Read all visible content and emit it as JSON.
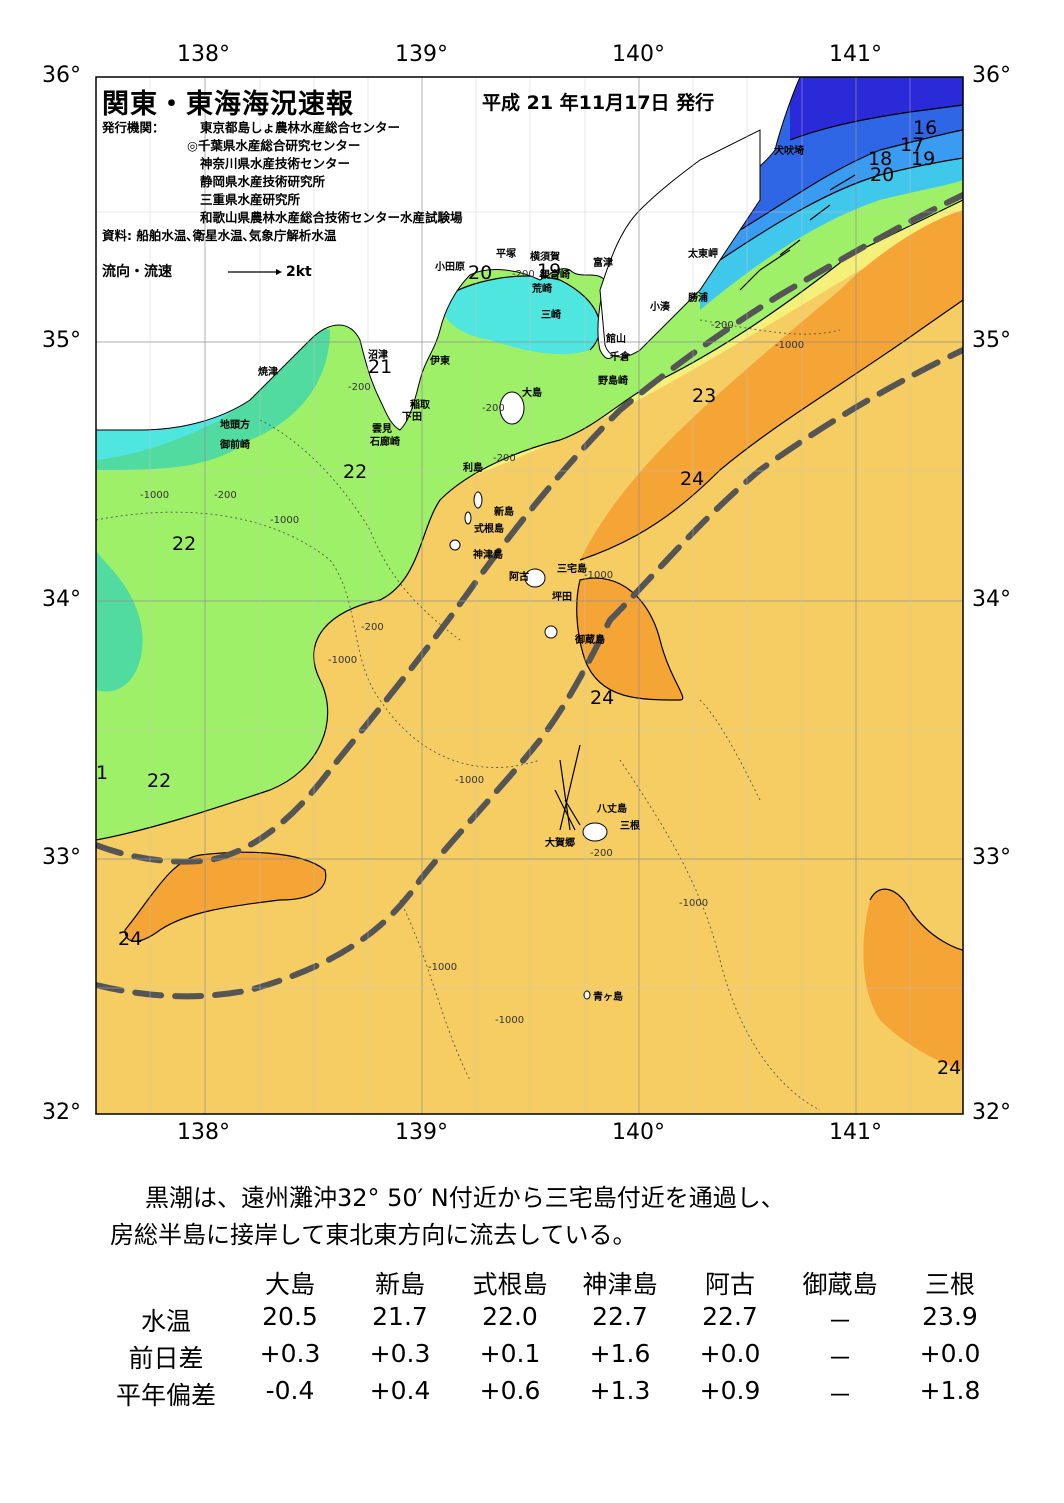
{
  "header": {
    "title": "関東・東海海況速報",
    "date": "平成 21 年11月17日 発行",
    "issuer_label": "発行機関：",
    "issuers": [
      "東京都島しょ農林水産総合センター",
      "◎千葉県水産総合研究センター",
      "神奈川県水産技術センター",
      "静岡県水産技術研究所",
      "三重県水産研究所",
      "和歌山県農林水産総合技術センター水産試験場"
    ],
    "source": "資料: 船舶水温､衛星水温､気象庁解析水温",
    "flow_legend": "流向・流速",
    "flow_scale": "2kt"
  },
  "axes": {
    "lon_labels": [
      "138°",
      "139°",
      "140°",
      "141°"
    ],
    "lat_labels": [
      "36°",
      "35°",
      "34°",
      "33°",
      "32°"
    ]
  },
  "places": [
    {
      "name": "犬吠埼"
    },
    {
      "name": "太東岬"
    },
    {
      "name": "勝浦"
    },
    {
      "name": "小湊"
    },
    {
      "name": "富津"
    },
    {
      "name": "横須賀"
    },
    {
      "name": "観音崎"
    },
    {
      "name": "荒崎"
    },
    {
      "name": "三崎"
    },
    {
      "name": "館山"
    },
    {
      "name": "千倉"
    },
    {
      "name": "野島崎"
    },
    {
      "name": "平塚"
    },
    {
      "name": "小田原"
    },
    {
      "name": "沼津"
    },
    {
      "name": "伊東"
    },
    {
      "name": "焼津"
    },
    {
      "name": "地頭方"
    },
    {
      "name": "御前崎"
    },
    {
      "name": "稲取"
    },
    {
      "name": "下田"
    },
    {
      "name": "雲見"
    },
    {
      "name": "石廊崎"
    },
    {
      "name": "大島"
    },
    {
      "name": "利島"
    },
    {
      "name": "新島"
    },
    {
      "name": "式根島"
    },
    {
      "name": "神津島"
    },
    {
      "name": "三宅島"
    },
    {
      "name": "阿古"
    },
    {
      "name": "坪田"
    },
    {
      "name": "御蔵島"
    },
    {
      "name": "八丈島"
    },
    {
      "name": "三根"
    },
    {
      "name": "大賀郷"
    },
    {
      "name": "青ヶ島"
    }
  ],
  "isotherm_labels": [
    {
      "value": "16"
    },
    {
      "value": "17"
    },
    {
      "value": "18"
    },
    {
      "value": "19"
    },
    {
      "value": "20"
    },
    {
      "value": "20"
    },
    {
      "value": "19"
    },
    {
      "value": "21"
    },
    {
      "value": "22"
    },
    {
      "value": "22"
    },
    {
      "value": "22"
    },
    {
      "value": "1"
    },
    {
      "value": "23"
    },
    {
      "value": "24"
    },
    {
      "value": "24"
    },
    {
      "value": "24"
    },
    {
      "value": "24"
    }
  ],
  "depth_labels": [
    "-200",
    "-200",
    "-200",
    "-200",
    "-200",
    "-200",
    "-200",
    "-200",
    "-1000",
    "-1000",
    "-1000",
    "-1000",
    "-1000",
    "-1000",
    "-1000",
    "-1000",
    "-1000"
  ],
  "colors": {
    "t16": "#2a2ad8",
    "t17": "#2f66e6",
    "t18": "#3a9cf0",
    "t19": "#40c8ec",
    "t20": "#4fe6e0",
    "t21": "#52dba0",
    "t22": "#9ef068",
    "t23": "#f4f07a",
    "t24": "#f6cd62",
    "t25": "#f5a436",
    "land": "#ffffff",
    "kuroshio": "#555555",
    "grid": "#909090"
  },
  "summary": [
    "黒潮は、遠州灘沖32° 50′ N付近から三宅島付近を通過し、",
    "房総半島に接岸して東北東方向に流去している。"
  ],
  "stats": {
    "stations": [
      "大島",
      "新島",
      "式根島",
      "神津島",
      "阿古",
      "御蔵島",
      "三根"
    ],
    "rows": [
      {
        "label": "水温",
        "values": [
          "20.5",
          "21.7",
          "22.0",
          "22.7",
          "22.7",
          "－",
          "23.9"
        ]
      },
      {
        "label": "前日差",
        "values": [
          "+0.3",
          "+0.3",
          "+0.1",
          "+1.6",
          "+0.0",
          "－",
          "+0.0"
        ]
      },
      {
        "label": "平年偏差",
        "values": [
          "-0.4",
          "+0.4",
          "+0.6",
          "+1.3",
          "+0.9",
          "－",
          "+1.8"
        ]
      }
    ]
  }
}
